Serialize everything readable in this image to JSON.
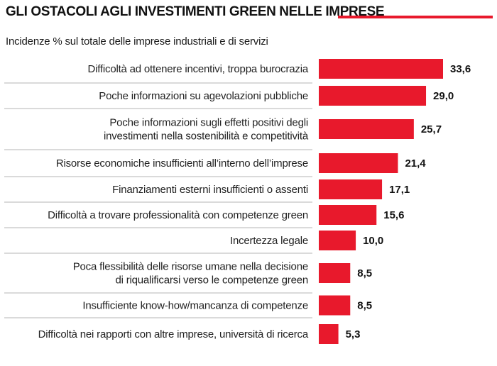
{
  "title": "GLI OSTACOLI AGLI INVESTIMENTI GREEN NELLE IMPRESE",
  "subtitle": "Incidenze % sul totale delle imprese industriali e di servizi",
  "colors": {
    "bar": "#e8192c",
    "divider": "#b5b5b5",
    "accent_rule": "#e8192c"
  },
  "chart_data": {
    "type": "bar",
    "orientation": "horizontal",
    "categories": [
      [
        "Difficoltà ad ottenere incentivi, troppa burocrazia"
      ],
      [
        "Poche informazioni su agevolazioni pubbliche"
      ],
      [
        "Poche informazioni sugli effetti positivi degli",
        "investimenti nella sostenibilità e competitività"
      ],
      [
        "Risorse economiche insufficienti all’interno dell’imprese"
      ],
      [
        "Finanziamenti esterni insufficienti o assenti"
      ],
      [
        "Difficoltà a trovare professionalità con competenze green"
      ],
      [
        "Incertezza legale"
      ],
      [
        "Poca flessibilità  delle risorse umane nella decisione",
        "di riqualificarsi verso le competenze green"
      ],
      [
        "Insufficiente know-how/mancanza di competenze"
      ],
      [
        "Difficoltà nei rapporti con altre imprese, università di ricerca"
      ]
    ],
    "values": [
      33.6,
      29.0,
      25.7,
      21.4,
      17.1,
      15.6,
      10.0,
      8.5,
      8.5,
      5.3
    ],
    "value_labels": [
      "33,6",
      "29,0",
      "25,7",
      "21,4",
      "17,1",
      "15,6",
      "10,0",
      "8,5",
      "8,5",
      "5,3"
    ],
    "xlim": [
      0,
      33.6
    ],
    "grid": false,
    "legend": "none"
  }
}
